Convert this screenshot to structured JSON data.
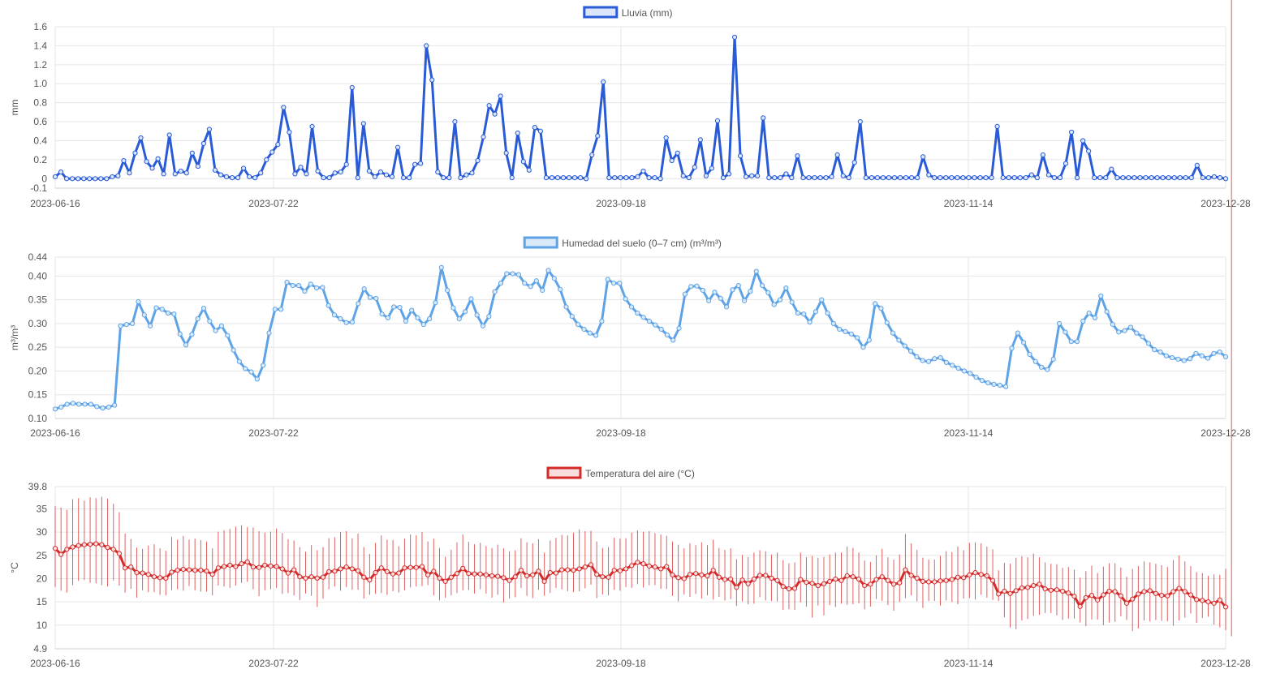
{
  "chart_data": [
    {
      "type": "line",
      "legend": "Lluvia (mm)",
      "ylabel": "mm",
      "color": "#2a5bd7",
      "fill": "#dbe6fb",
      "x_labels": [
        "2023-06-16",
        "2023-07-22",
        "2023-09-18",
        "2023-11-14",
        "2023-12-28"
      ],
      "ylim": [
        -0.1,
        1.6
      ],
      "yticks": [
        "1.6",
        "1.4",
        "1.2",
        "1.0",
        "0.8",
        "0.6",
        "0.4",
        "0.2",
        "0",
        "-0.1"
      ],
      "ytick_values": [
        1.6,
        1.4,
        1.2,
        1.0,
        0.8,
        0.6,
        0.4,
        0.2,
        0,
        -0.1
      ],
      "values": [
        0.02,
        0.07,
        0,
        0,
        0,
        0,
        0,
        0,
        0,
        0,
        0.02,
        0.03,
        0.19,
        0.06,
        0.27,
        0.43,
        0.18,
        0.11,
        0.21,
        0.05,
        0.46,
        0.05,
        0.08,
        0.06,
        0.27,
        0.13,
        0.37,
        0.52,
        0.09,
        0.04,
        0.02,
        0.01,
        0.01,
        0.11,
        0.02,
        0.01,
        0.06,
        0.2,
        0.28,
        0.36,
        0.75,
        0.49,
        0.05,
        0.12,
        0.05,
        0.55,
        0.08,
        0.01,
        0.01,
        0.06,
        0.07,
        0.15,
        0.96,
        0.01,
        0.58,
        0.08,
        0.02,
        0.07,
        0.04,
        0.02,
        0.33,
        0.01,
        0.01,
        0.15,
        0.16,
        1.4,
        1.04,
        0.07,
        0.01,
        0.01,
        0.6,
        0.01,
        0.04,
        0.06,
        0.19,
        0.44,
        0.77,
        0.68,
        0.87,
        0.27,
        0.01,
        0.48,
        0.18,
        0.09,
        0.54,
        0.5,
        0.01,
        0.01,
        0.01,
        0.01,
        0.01,
        0.01,
        0.01,
        0,
        0.25,
        0.45,
        1.02,
        0.01,
        0.01,
        0.01,
        0.01,
        0.01,
        0.02,
        0.08,
        0.01,
        0.01,
        0,
        0.43,
        0.19,
        0.27,
        0.03,
        0.01,
        0.12,
        0.41,
        0.03,
        0.11,
        0.61,
        0.01,
        0.05,
        1.49,
        0.24,
        0.02,
        0.03,
        0.03,
        0.64,
        0.01,
        0.01,
        0.01,
        0.05,
        0.01,
        0.24,
        0.01,
        0.01,
        0.01,
        0.01,
        0.01,
        0.02,
        0.25,
        0.03,
        0.01,
        0.17,
        0.6,
        0.01,
        0.01,
        0.01,
        0.01,
        0.01,
        0.01,
        0.01,
        0.01,
        0.01,
        0.01,
        0.23,
        0.04,
        0.01,
        0.01,
        0.01,
        0.01,
        0.01,
        0.01,
        0.01,
        0.01,
        0.01,
        0.01,
        0.01,
        0.55,
        0.01,
        0.01,
        0.01,
        0.01,
        0.01,
        0.04,
        0.01,
        0.25,
        0.04,
        0.01,
        0.01,
        0.16,
        0.49,
        0.01,
        0.4,
        0.29,
        0.01,
        0.01,
        0.01,
        0.1,
        0.01,
        0.01,
        0.01,
        0.01,
        0.01,
        0.01,
        0.01,
        0.01,
        0.01,
        0.01,
        0.01,
        0.01,
        0.01,
        0.01,
        0.14,
        0.01,
        0.01,
        0.02,
        0.01,
        0
      ]
    },
    {
      "type": "line",
      "legend": "Humedad del suelo (0–7 cm) (m³/m³)",
      "ylabel": "m³/m³",
      "color": "#5ea3e6",
      "fill": "#dbeaf8",
      "x_labels": [
        "2023-06-16",
        "2023-07-22",
        "2023-09-18",
        "2023-11-14",
        "2023-12-28"
      ],
      "ylim": [
        0.1,
        0.44
      ],
      "yticks": [
        "0.44",
        "0.40",
        "0.35",
        "0.30",
        "0.25",
        "0.20",
        "0.15",
        "0.10"
      ],
      "ytick_values": [
        0.44,
        0.4,
        0.35,
        0.3,
        0.25,
        0.2,
        0.15,
        0.1
      ],
      "values": [
        0.12,
        0.124,
        0.13,
        0.132,
        0.13,
        0.13,
        0.13,
        0.125,
        0.122,
        0.124,
        0.128,
        0.295,
        0.298,
        0.3,
        0.346,
        0.318,
        0.295,
        0.333,
        0.33,
        0.322,
        0.32,
        0.278,
        0.255,
        0.277,
        0.31,
        0.332,
        0.305,
        0.285,
        0.295,
        0.275,
        0.244,
        0.22,
        0.205,
        0.198,
        0.183,
        0.212,
        0.28,
        0.33,
        0.33,
        0.387,
        0.38,
        0.38,
        0.368,
        0.383,
        0.375,
        0.376,
        0.338,
        0.318,
        0.31,
        0.302,
        0.303,
        0.342,
        0.373,
        0.355,
        0.353,
        0.32,
        0.312,
        0.335,
        0.334,
        0.305,
        0.328,
        0.312,
        0.298,
        0.31,
        0.344,
        0.418,
        0.37,
        0.333,
        0.31,
        0.325,
        0.352,
        0.318,
        0.295,
        0.315,
        0.367,
        0.385,
        0.405,
        0.405,
        0.403,
        0.385,
        0.378,
        0.39,
        0.37,
        0.412,
        0.395,
        0.372,
        0.335,
        0.315,
        0.298,
        0.288,
        0.28,
        0.275,
        0.305,
        0.393,
        0.385,
        0.385,
        0.352,
        0.335,
        0.322,
        0.313,
        0.305,
        0.297,
        0.288,
        0.276,
        0.265,
        0.29,
        0.362,
        0.378,
        0.379,
        0.37,
        0.348,
        0.366,
        0.353,
        0.335,
        0.371,
        0.38,
        0.348,
        0.368,
        0.41,
        0.38,
        0.365,
        0.34,
        0.35,
        0.375,
        0.345,
        0.322,
        0.32,
        0.303,
        0.325,
        0.35,
        0.322,
        0.3,
        0.288,
        0.283,
        0.278,
        0.27,
        0.25,
        0.265,
        0.342,
        0.332,
        0.302,
        0.28,
        0.265,
        0.253,
        0.242,
        0.23,
        0.222,
        0.22,
        0.226,
        0.228,
        0.218,
        0.212,
        0.206,
        0.2,
        0.195,
        0.187,
        0.18,
        0.175,
        0.172,
        0.17,
        0.167,
        0.248,
        0.28,
        0.26,
        0.235,
        0.22,
        0.208,
        0.203,
        0.225,
        0.3,
        0.282,
        0.262,
        0.262,
        0.305,
        0.322,
        0.312,
        0.358,
        0.325,
        0.298,
        0.282,
        0.285,
        0.292,
        0.28,
        0.272,
        0.258,
        0.245,
        0.24,
        0.232,
        0.228,
        0.225,
        0.222,
        0.226,
        0.237,
        0.232,
        0.227,
        0.237,
        0.24,
        0.23
      ]
    },
    {
      "type": "line",
      "legend": "Temperatura del aire (°C)",
      "ylabel": "°C",
      "color": "#d42a2a",
      "fill": "#fadede",
      "x_labels": [
        "2023-06-16",
        "2023-07-22",
        "2023-09-18",
        "2023-11-14",
        "2023-12-28"
      ],
      "ylim": [
        4.9,
        39.8
      ],
      "yticks": [
        "39.8",
        "35",
        "30",
        "25",
        "20",
        "15",
        "10",
        "4.9"
      ],
      "ytick_values": [
        39.8,
        35,
        30,
        25,
        20,
        15,
        10,
        4.9
      ],
      "values": [
        26.5,
        25.2,
        26.3,
        26.8,
        27.1,
        27.3,
        27.4,
        27.5,
        27.3,
        26.7,
        26.3,
        25.4,
        22.3,
        22.5,
        21.3,
        21.2,
        20.9,
        20.4,
        20.2,
        20.1,
        21.4,
        21.8,
        22,
        21.9,
        21.8,
        21.8,
        21.6,
        20.9,
        22.3,
        22.6,
        22.9,
        22.6,
        23.2,
        23.6,
        22.5,
        22.4,
        22.9,
        22.7,
        22.6,
        22.1,
        21.2,
        21.9,
        20.4,
        20.1,
        20.4,
        20.1,
        20.3,
        21.5,
        21.6,
        22.1,
        22.5,
        22.1,
        21.7,
        20.3,
        19.7,
        21.3,
        22.3,
        21.5,
        21,
        21.2,
        22.3,
        22.4,
        22.4,
        22.6,
        20.8,
        21.6,
        20.1,
        19.4,
        20.3,
        21.1,
        22.2,
        21.1,
        21,
        21,
        20.8,
        20.6,
        20.5,
        20.2,
        19.6,
        20.4,
        21.8,
        20.6,
        20.8,
        21.6,
        19.4,
        21.3,
        21.2,
        21.9,
        21.9,
        21.8,
        22.1,
        22.5,
        23,
        20.9,
        20.4,
        20.3,
        21.8,
        21.7,
        22.1,
        22.8,
        23.5,
        23.2,
        22.7,
        22.5,
        22.1,
        22.6,
        20.8,
        20.2,
        20,
        20.9,
        21.1,
        20.8,
        20.6,
        21.8,
        20.3,
        19.8,
        19.9,
        18.1,
        19.7,
        18.9,
        19.9,
        20.7,
        20.7,
        20.1,
        19.6,
        18.3,
        17.8,
        17.9,
        19.8,
        19.2,
        19,
        18.5,
        18.9,
        19.4,
        19.9,
        19.6,
        20.6,
        20.4,
        19.9,
        18.5,
        18.8,
        19.8,
        20.4,
        19.6,
        18.8,
        19.1,
        21.9,
        20.7,
        20.1,
        19.4,
        19.3,
        19.3,
        19.5,
        19.6,
        19.8,
        20.3,
        20.2,
        20.8,
        21.3,
        20.9,
        20.6,
        19.6,
        16.7,
        17.3,
        16.8,
        17.4,
        18,
        18.1,
        18.5,
        18.8,
        17.8,
        17.5,
        17.6,
        17.3,
        16.9,
        16.2,
        14,
        15.9,
        16.4,
        15.4,
        16.5,
        17.3,
        17.2,
        16.3,
        14.7,
        15.6,
        16.7,
        17.2,
        17.4,
        16.8,
        16.4,
        16.3,
        17.2,
        17.9,
        17.2,
        16.5,
        15.5,
        15.3,
        15,
        14.7,
        15.4,
        13.9
      ],
      "mins": [
        18.2,
        17.4,
        17,
        18.6,
        19.5,
        19.7,
        19.1,
        19,
        18.6,
        18.3,
        19.6,
        18.5,
        17,
        17.8,
        15.9,
        17.5,
        17.1,
        17.1,
        16.5,
        16.4,
        17.5,
        17.7,
        17.4,
        18.4,
        17.5,
        17.2,
        17.2,
        16.4,
        18.5,
        18.3,
        18,
        18.5,
        19.1,
        19.3,
        17.7,
        16.2,
        17.5,
        17.7,
        18,
        16.7,
        16.9,
        16.4,
        15.4,
        16.8,
        16.3,
        13.9,
        15.7,
        17.7,
        18.3,
        17.4,
        18.2,
        17.6,
        17.6,
        15.7,
        16.5,
        16.7,
        16.9,
        16.5,
        17.3,
        17,
        17.5,
        18.1,
        18.3,
        18.4,
        18.6,
        16.4,
        15.3,
        15.9,
        16.4,
        16.9,
        17.5,
        17.6,
        16.8,
        17.7,
        16.8,
        15.9,
        16.5,
        14.9,
        15.7,
        16,
        18,
        16.3,
        15.8,
        17.6,
        16.3,
        16.9,
        18,
        17.7,
        17.3,
        17.1,
        17.3,
        17.9,
        18.7,
        15.8,
        16.6,
        16.4,
        17.6,
        17.4,
        18.2,
        18,
        18.8,
        18.1,
        18.6,
        18.6,
        17.8,
        17.8,
        16.3,
        15.1,
        16.6,
        16.1,
        16.7,
        15.7,
        16.4,
        15.5,
        16.1,
        15.3,
        15.6,
        14.1,
        15.1,
        14.5,
        14.6,
        16,
        15.3,
        15.2,
        15.1,
        13.3,
        13.4,
        13.3,
        14.9,
        14,
        11.6,
        14.2,
        12.1,
        14.3,
        13.9,
        14.6,
        14.4,
        14.5,
        14.7,
        13.4,
        14,
        15.6,
        15.2,
        14.3,
        13.1,
        15,
        15.8,
        16.4,
        15.1,
        13.7,
        15.2,
        15.2,
        14.2,
        15.3,
        15,
        14.5,
        15.7,
        15.8,
        15.5,
        16.5,
        15.9,
        15.4,
        15.2,
        11.7,
        9.5,
        9.1,
        11,
        11.3,
        12,
        12.2,
        12.6,
        12.6,
        12.1,
        11.1,
        11.4,
        11.4,
        10.6,
        9.8,
        11.2,
        11.2,
        10,
        10.6,
        10.7,
        11.9,
        11.1,
        8.7,
        9.3,
        11,
        10.8,
        11.1,
        10.9,
        10.8,
        9.9,
        11,
        11.6,
        12.5,
        10.5,
        11.5,
        11.8,
        10.1,
        9.5,
        8.9,
        7.6
      ],
      "maxs": [
        35.6,
        35.3,
        34.8,
        37.1,
        37.3,
        36.8,
        37.5,
        37.3,
        37.6,
        37.2,
        36.1,
        34.3,
        29.7,
        28.5,
        26.7,
        26.4,
        27.1,
        27.4,
        26.5,
        26,
        29,
        28.4,
        29.2,
        28.4,
        28.6,
        28.3,
        28,
        26.5,
        30.1,
        30.4,
        30.7,
        31.2,
        31.5,
        31.1,
        31,
        30.2,
        29.9,
        30.1,
        30.8,
        29.8,
        28.5,
        28.2,
        26.8,
        25.8,
        27.2,
        26.1,
        26.8,
        28.7,
        28.9,
        30,
        30.2,
        28.7,
        29.7,
        26.8,
        25.3,
        27.7,
        29.3,
        28.4,
        28.3,
        27,
        28.6,
        29.5,
        29.3,
        30,
        28,
        28.6,
        26.6,
        24.7,
        26.2,
        27.8,
        29.5,
        27.9,
        27.4,
        27.7,
        27,
        26.6,
        27.3,
        26.5,
        25.9,
        26.1,
        28.7,
        27.8,
        27.6,
        28.5,
        25.6,
        28.2,
        28.8,
        29.4,
        29.3,
        29.9,
        30.6,
        30.2,
        30.3,
        28,
        26.6,
        26.8,
        28.8,
        28.6,
        28.7,
        29.9,
        30.4,
        30.1,
        30.2,
        29.8,
        29.5,
        29.2,
        28,
        27.3,
        26.5,
        27.6,
        27.2,
        27.8,
        27.2,
        28.4,
        26.6,
        26.2,
        26.5,
        24.2,
        25.1,
        24.6,
        25.6,
        26.1,
        25.9,
        25.2,
        25.6,
        24,
        23.3,
        23.5,
        25.6,
        24.6,
        24.9,
        24.5,
        24.7,
        25.2,
        25.6,
        25.6,
        26.9,
        26.6,
        25.6,
        23.9,
        23.6,
        25,
        26.4,
        24.6,
        24.1,
        25.2,
        29.6,
        27.6,
        26.2,
        24.5,
        24.1,
        24.1,
        24.9,
        25.9,
        25.7,
        26.9,
        26.1,
        27.7,
        27.8,
        27.6,
        26.9,
        26.3,
        21.8,
        23.4,
        23.2,
        24.5,
        24.8,
        24.6,
        25.4,
        24.6,
        23.5,
        23.2,
        23.1,
        22.3,
        22.5,
        21.9,
        20.2,
        21.6,
        22.8,
        21.2,
        22.6,
        23.3,
        23.3,
        22.4,
        20.4,
        22.1,
        22.7,
        23.7,
        23.5,
        23.2,
        22.9,
        22.5,
        24,
        25,
        23.7,
        22.7,
        21.4,
        21.2,
        20.6,
        20.9,
        20.8,
        22.1
      ]
    }
  ]
}
